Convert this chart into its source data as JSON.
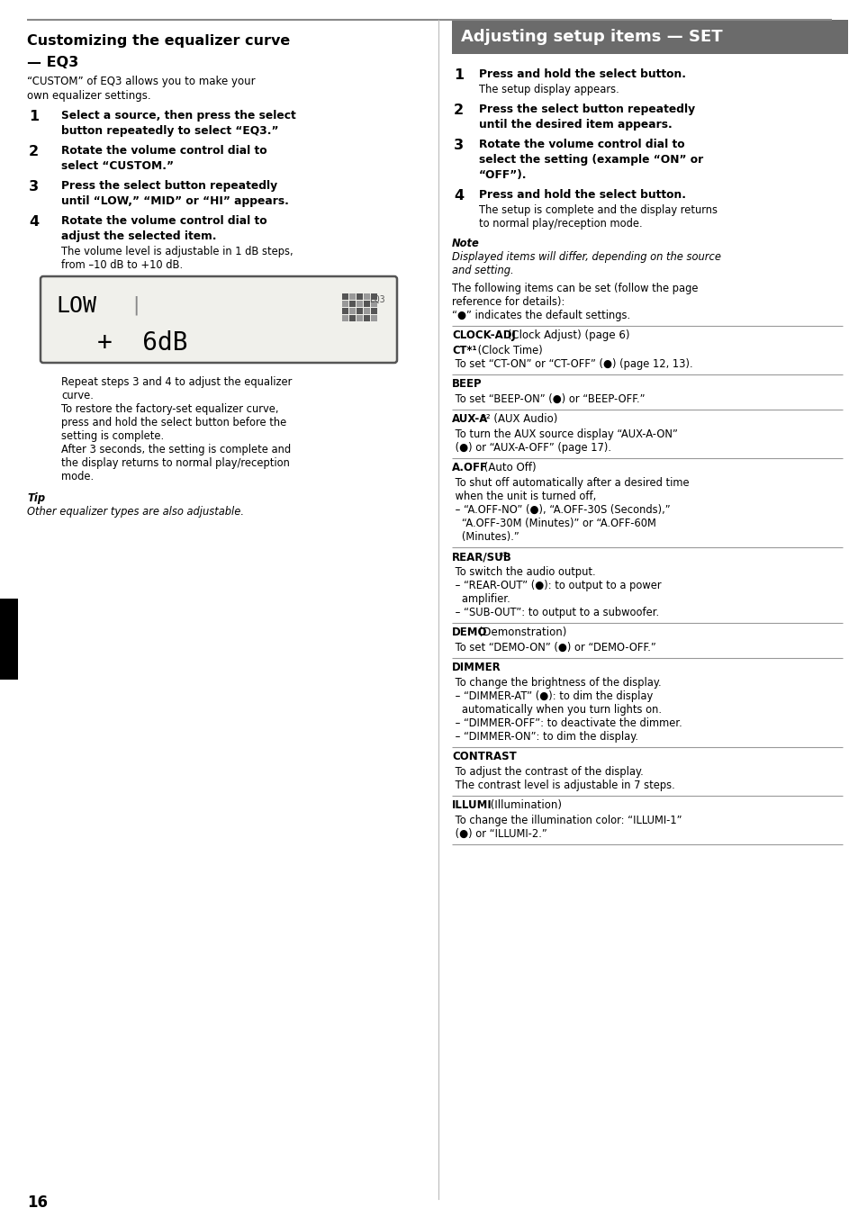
{
  "bg_color": "#ffffff",
  "page_number": "16",
  "right_header_text": "Adjusting setup items — SET",
  "right_header_bg": "#6b6b6b",
  "right_header_fg": "#ffffff",
  "note_label": "Note",
  "note_text": "Displayed items will differ, depending on the source\nand setting.",
  "items": [
    {
      "heading": "CLOCK-ADJ",
      "heading_suffix": " (Clock Adjust) (page 6)",
      "sub_items": [
        {
          "bold": "CT*¹",
          "normal": " (Clock Time)"
        },
        {
          "bold": "",
          "normal": " To set “CT-ON” or “CT-OFF” (●) (page 12, 13)."
        }
      ]
    },
    {
      "heading": "BEEP",
      "heading_suffix": "",
      "sub_items": [
        {
          "bold": "",
          "normal": " To set “BEEP-ON” (●) or “BEEP-OFF.”"
        }
      ]
    },
    {
      "heading": "AUX-A",
      "heading_suffix": "*² (AUX Audio)",
      "sub_items": [
        {
          "bold": "",
          "normal": " To turn the AUX source display “AUX-A-ON”"
        },
        {
          "bold": "",
          "normal": " (●) or “AUX-A-OFF” (page 17)."
        }
      ]
    },
    {
      "heading": "A.OFF",
      "heading_suffix": " (Auto Off)",
      "sub_items": [
        {
          "bold": "",
          "normal": " To shut off automatically after a desired time"
        },
        {
          "bold": "",
          "normal": " when the unit is turned off,"
        },
        {
          "bold": "",
          "normal": " – “A.OFF-NO” (●), “A.OFF-30S (Seconds),”"
        },
        {
          "bold": "",
          "normal": "   “A.OFF-30M (Minutes)” or “A.OFF-60M"
        },
        {
          "bold": "",
          "normal": "   (Minutes).”"
        }
      ]
    },
    {
      "heading": "REAR/SUB",
      "heading_suffix": "*²",
      "sub_items": [
        {
          "bold": "",
          "normal": " To switch the audio output."
        },
        {
          "bold": "",
          "normal": " – “REAR-OUT” (●): to output to a power"
        },
        {
          "bold": "",
          "normal": "   amplifier."
        },
        {
          "bold": "",
          "normal": " – “SUB-OUT”: to output to a subwoofer."
        }
      ]
    },
    {
      "heading": "DEMO",
      "heading_suffix": " (Demonstration)",
      "sub_items": [
        {
          "bold": "",
          "normal": " To set “DEMO-ON” (●) or “DEMO-OFF.”"
        }
      ]
    },
    {
      "heading": "DIMMER",
      "heading_suffix": "",
      "sub_items": [
        {
          "bold": "",
          "normal": " To change the brightness of the display."
        },
        {
          "bold": "",
          "normal": " – “DIMMER-AT” (●): to dim the display"
        },
        {
          "bold": "",
          "normal": "   automatically when you turn lights on."
        },
        {
          "bold": "",
          "normal": " – “DIMMER-OFF”: to deactivate the dimmer."
        },
        {
          "bold": "",
          "normal": " – “DIMMER-ON”: to dim the display."
        }
      ]
    },
    {
      "heading": "CONTRAST",
      "heading_suffix": "",
      "sub_items": [
        {
          "bold": "",
          "normal": " To adjust the contrast of the display."
        },
        {
          "bold": "",
          "normal": " The contrast level is adjustable in 7 steps."
        }
      ]
    },
    {
      "heading": "ILLUMI",
      "heading_suffix": " (Illumination)",
      "sub_items": [
        {
          "bold": "",
          "normal": " To change the illumination color: “ILLUMI-1”"
        },
        {
          "bold": "",
          "normal": " (●) or “ILLUMI-2.”"
        }
      ]
    }
  ]
}
